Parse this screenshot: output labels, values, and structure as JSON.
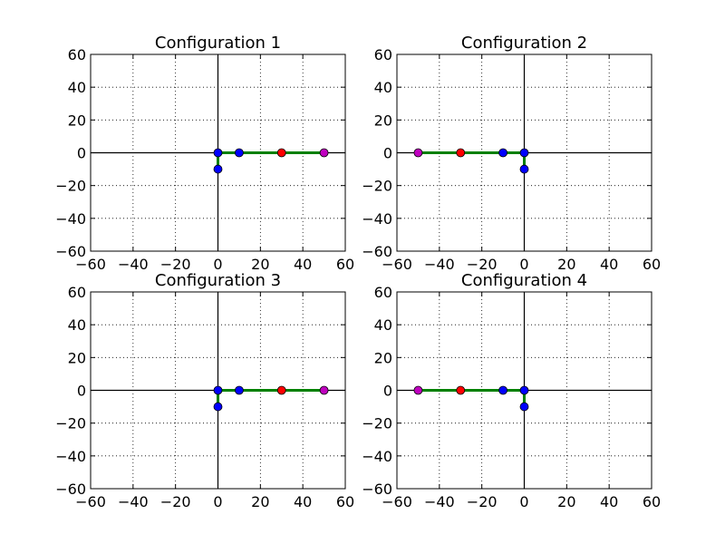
{
  "chart_data": [
    {
      "type": "line",
      "title": "Configuration 1",
      "xlim": [
        -60,
        60
      ],
      "ylim": [
        -60,
        60
      ],
      "xticks": [
        -60,
        -40,
        -20,
        0,
        20,
        40,
        60
      ],
      "yticks": [
        -60,
        -40,
        -20,
        0,
        20,
        40,
        60
      ],
      "tick_labels_x": [
        "−60",
        "−40",
        "−20",
        "0",
        "20",
        "40",
        "60"
      ],
      "tick_labels_y": [
        "−60",
        "−40",
        "−20",
        "0",
        "20",
        "40",
        "60"
      ],
      "grid": true,
      "linkage": {
        "x": [
          0,
          0,
          10,
          30,
          50
        ],
        "y": [
          -10,
          0,
          0,
          0,
          0
        ],
        "color": "#008000"
      },
      "points": [
        {
          "x": 0,
          "y": -10,
          "color": "#0000ff"
        },
        {
          "x": 0,
          "y": 0,
          "color": "#0000ff"
        },
        {
          "x": 10,
          "y": 0,
          "color": "#0000ff"
        },
        {
          "x": 30,
          "y": 0,
          "color": "#ff0000"
        },
        {
          "x": 50,
          "y": 0,
          "color": "#bf00bf"
        }
      ]
    },
    {
      "type": "line",
      "title": "Configuration 2",
      "xlim": [
        -60,
        60
      ],
      "ylim": [
        -60,
        60
      ],
      "xticks": [
        -60,
        -40,
        -20,
        0,
        20,
        40,
        60
      ],
      "yticks": [
        -60,
        -40,
        -20,
        0,
        20,
        40,
        60
      ],
      "tick_labels_x": [
        "−60",
        "−40",
        "−20",
        "0",
        "20",
        "40",
        "60"
      ],
      "tick_labels_y": [
        "−60",
        "−40",
        "−20",
        "0",
        "20",
        "40",
        "60"
      ],
      "grid": true,
      "linkage": {
        "x": [
          0,
          0,
          -10,
          -30,
          -50
        ],
        "y": [
          -10,
          0,
          0,
          0,
          0
        ],
        "color": "#008000"
      },
      "points": [
        {
          "x": 0,
          "y": -10,
          "color": "#0000ff"
        },
        {
          "x": 0,
          "y": 0,
          "color": "#0000ff"
        },
        {
          "x": -10,
          "y": 0,
          "color": "#0000ff"
        },
        {
          "x": -30,
          "y": 0,
          "color": "#ff0000"
        },
        {
          "x": -50,
          "y": 0,
          "color": "#bf00bf"
        }
      ]
    },
    {
      "type": "line",
      "title": "Configuration 3",
      "xlim": [
        -60,
        60
      ],
      "ylim": [
        -60,
        60
      ],
      "xticks": [
        -60,
        -40,
        -20,
        0,
        20,
        40,
        60
      ],
      "yticks": [
        -60,
        -40,
        -20,
        0,
        20,
        40,
        60
      ],
      "tick_labels_x": [
        "−60",
        "−40",
        "−20",
        "0",
        "20",
        "40",
        "60"
      ],
      "tick_labels_y": [
        "−60",
        "−40",
        "−20",
        "0",
        "20",
        "40",
        "60"
      ],
      "grid": true,
      "linkage": {
        "x": [
          0,
          0,
          10,
          30,
          50
        ],
        "y": [
          -10,
          0,
          0,
          0,
          0
        ],
        "color": "#008000"
      },
      "points": [
        {
          "x": 0,
          "y": -10,
          "color": "#0000ff"
        },
        {
          "x": 0,
          "y": 0,
          "color": "#0000ff"
        },
        {
          "x": 10,
          "y": 0,
          "color": "#0000ff"
        },
        {
          "x": 30,
          "y": 0,
          "color": "#ff0000"
        },
        {
          "x": 50,
          "y": 0,
          "color": "#bf00bf"
        }
      ]
    },
    {
      "type": "line",
      "title": "Configuration 4",
      "xlim": [
        -60,
        60
      ],
      "ylim": [
        -60,
        60
      ],
      "xticks": [
        -60,
        -40,
        -20,
        0,
        20,
        40,
        60
      ],
      "yticks": [
        -60,
        -40,
        -20,
        0,
        20,
        40,
        60
      ],
      "tick_labels_x": [
        "−60",
        "−40",
        "−20",
        "0",
        "20",
        "40",
        "60"
      ],
      "tick_labels_y": [
        "−60",
        "−40",
        "−20",
        "0",
        "20",
        "40",
        "60"
      ],
      "grid": true,
      "linkage": {
        "x": [
          0,
          0,
          -10,
          -30,
          -50
        ],
        "y": [
          -10,
          0,
          0,
          0,
          0
        ],
        "color": "#008000"
      },
      "points": [
        {
          "x": 0,
          "y": -10,
          "color": "#0000ff"
        },
        {
          "x": 0,
          "y": 0,
          "color": "#0000ff"
        },
        {
          "x": -10,
          "y": 0,
          "color": "#0000ff"
        },
        {
          "x": -30,
          "y": 0,
          "color": "#ff0000"
        },
        {
          "x": -50,
          "y": 0,
          "color": "#bf00bf"
        }
      ]
    }
  ]
}
